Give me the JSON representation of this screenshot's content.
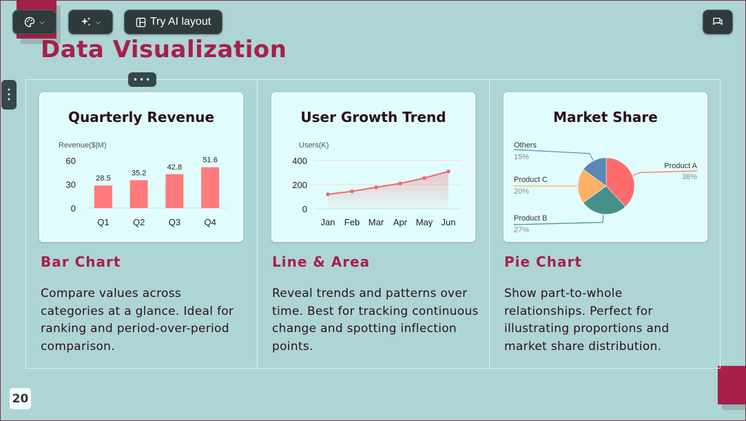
{
  "toolbar": {
    "theme_icon": "palette-icon",
    "ai_icon": "sparkle-icon",
    "ai_layout_label": "Try AI layout",
    "layout_icon": "layout-icon",
    "chat_icon": "comment-icon"
  },
  "slide": {
    "title": "Data Visualization",
    "page_number": "20",
    "colors": {
      "accent": "#a6204a",
      "background": "#aed5d5",
      "card": "#e1fcfc",
      "bar": "#ff7b7b"
    }
  },
  "cards": [
    {
      "chart_title": "Quarterly Revenue",
      "heading": "Bar Chart",
      "description": "Compare values across categories at a glance. Ideal for ranking and period-over-period comparison."
    },
    {
      "chart_title": "User Growth Trend",
      "heading": "Line & Area",
      "description": "Reveal trends and patterns over time. Best for tracking continuous change and spotting inflection points."
    },
    {
      "chart_title": "Market Share",
      "heading": "Pie Chart",
      "description": "Show part-to-whole relationships. Perfect for illustrating proportions and market share distribution."
    }
  ],
  "chart_data": [
    {
      "type": "bar",
      "title": "Quarterly Revenue",
      "ylabel": "Revenue($|M)",
      "categories": [
        "Q1",
        "Q2",
        "Q3",
        "Q4"
      ],
      "values": [
        28.5,
        35.2,
        42.8,
        51.6
      ],
      "ylim": [
        0,
        60
      ],
      "yticks": [
        0,
        30,
        60
      ],
      "data_labels": [
        "28.5",
        "35.2",
        "42.8",
        "51.6"
      ],
      "color": "#ff7b7b"
    },
    {
      "type": "line",
      "title": "User Growth Trend",
      "ylabel": "Users(K)",
      "categories": [
        "Jan",
        "Feb",
        "Mar",
        "Apr",
        "May",
        "Jun"
      ],
      "values": [
        120,
        145,
        178,
        210,
        255,
        310
      ],
      "ylim": [
        0,
        400
      ],
      "yticks": [
        0,
        200,
        400
      ],
      "color": "#f0686c",
      "area": true
    },
    {
      "type": "pie",
      "title": "Market Share",
      "slices": [
        {
          "name": "Product A",
          "value": 38,
          "label": "38%",
          "color": "#ff6b6b"
        },
        {
          "name": "Product B",
          "value": 27,
          "label": "27%",
          "color": "#46908a"
        },
        {
          "name": "Product C",
          "value": 20,
          "label": "20%",
          "color": "#ffb067"
        },
        {
          "name": "Others",
          "value": 15,
          "label": "15%",
          "color": "#5a87b4"
        }
      ]
    }
  ]
}
